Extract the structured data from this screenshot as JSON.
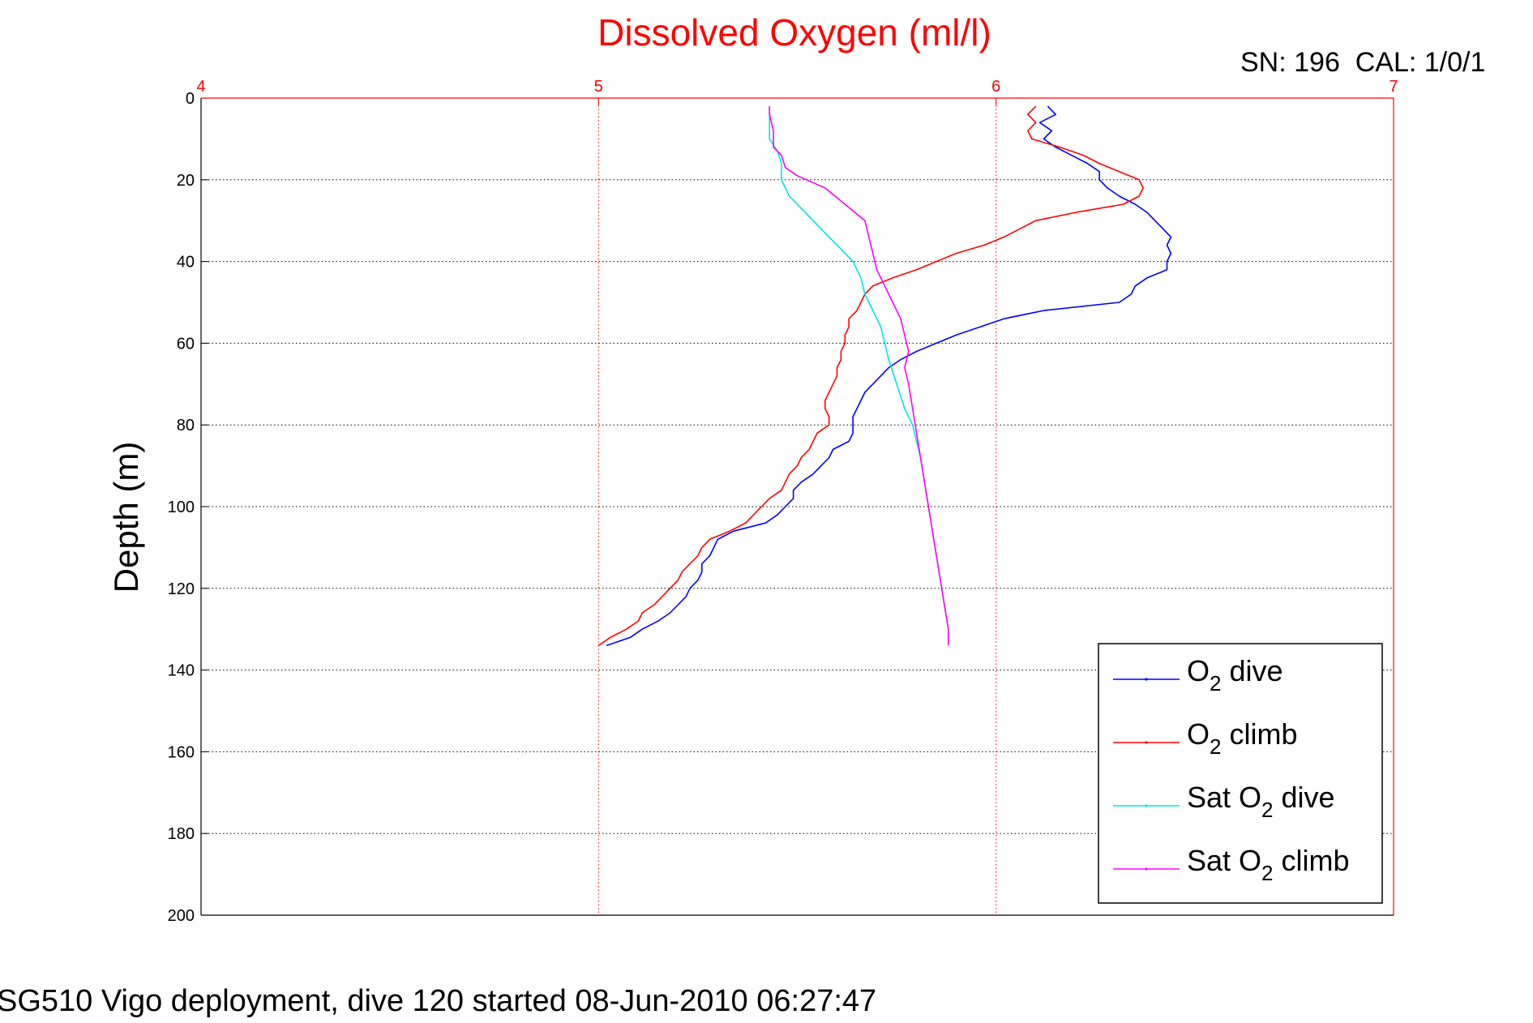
{
  "chart_data": {
    "type": "line",
    "title": "Dissolved Oxygen (ml/l)",
    "calibration_label": "SN: 196  CAL: 1/0/1",
    "ylabel": "Depth (m)",
    "xlabel": "",
    "x_axis_position": "top",
    "y_axis_reversed": true,
    "xlim": [
      4,
      7
    ],
    "ylim": [
      0,
      200
    ],
    "x_ticks": [
      "4",
      "5",
      "6",
      "7"
    ],
    "y_ticks": [
      "0",
      "20",
      "40",
      "60",
      "80",
      "100",
      "120",
      "140",
      "160",
      "180",
      "200"
    ],
    "grid": true,
    "legend_position": "bottom-right",
    "axis_color": "#ff0000",
    "series": [
      {
        "name": "O2 dive",
        "legend_main": "O",
        "legend_sub": "2",
        "legend_rest": " dive",
        "color": "#0000ff",
        "points": [
          [
            6.13,
            2
          ],
          [
            6.15,
            4
          ],
          [
            6.11,
            6
          ],
          [
            6.14,
            8
          ],
          [
            6.12,
            10
          ],
          [
            6.15,
            12
          ],
          [
            6.19,
            14
          ],
          [
            6.23,
            16
          ],
          [
            6.26,
            18
          ],
          [
            6.26,
            20
          ],
          [
            6.28,
            22
          ],
          [
            6.31,
            24
          ],
          [
            6.35,
            26
          ],
          [
            6.38,
            28
          ],
          [
            6.4,
            30
          ],
          [
            6.42,
            32
          ],
          [
            6.44,
            34
          ],
          [
            6.43,
            36
          ],
          [
            6.44,
            38
          ],
          [
            6.43,
            40
          ],
          [
            6.43,
            42
          ],
          [
            6.38,
            44
          ],
          [
            6.35,
            46
          ],
          [
            6.34,
            48
          ],
          [
            6.31,
            50
          ],
          [
            6.12,
            52
          ],
          [
            6.02,
            54
          ],
          [
            5.96,
            56
          ],
          [
            5.9,
            58
          ],
          [
            5.85,
            60
          ],
          [
            5.8,
            62
          ],
          [
            5.76,
            64
          ],
          [
            5.73,
            66
          ],
          [
            5.71,
            68
          ],
          [
            5.69,
            70
          ],
          [
            5.67,
            72
          ],
          [
            5.66,
            74
          ],
          [
            5.65,
            76
          ],
          [
            5.64,
            78
          ],
          [
            5.64,
            80
          ],
          [
            5.64,
            82
          ],
          [
            5.63,
            84
          ],
          [
            5.59,
            86
          ],
          [
            5.58,
            88
          ],
          [
            5.56,
            90
          ],
          [
            5.54,
            92
          ],
          [
            5.51,
            94
          ],
          [
            5.49,
            96
          ],
          [
            5.49,
            98
          ],
          [
            5.47,
            100
          ],
          [
            5.45,
            102
          ],
          [
            5.42,
            104
          ],
          [
            5.34,
            106
          ],
          [
            5.3,
            108
          ],
          [
            5.29,
            110
          ],
          [
            5.28,
            112
          ],
          [
            5.26,
            114
          ],
          [
            5.26,
            116
          ],
          [
            5.25,
            118
          ],
          [
            5.23,
            120
          ],
          [
            5.22,
            122
          ],
          [
            5.2,
            124
          ],
          [
            5.18,
            126
          ],
          [
            5.15,
            128
          ],
          [
            5.11,
            130
          ],
          [
            5.08,
            132
          ],
          [
            5.02,
            134
          ]
        ]
      },
      {
        "name": "O2 climb",
        "legend_main": "O",
        "legend_sub": "2",
        "legend_rest": " climb",
        "color": "#ff0000",
        "points": [
          [
            5.0,
            134
          ],
          [
            5.03,
            132
          ],
          [
            5.07,
            130
          ],
          [
            5.1,
            128
          ],
          [
            5.11,
            126
          ],
          [
            5.14,
            124
          ],
          [
            5.16,
            122
          ],
          [
            5.18,
            120
          ],
          [
            5.2,
            118
          ],
          [
            5.21,
            116
          ],
          [
            5.23,
            114
          ],
          [
            5.25,
            112
          ],
          [
            5.26,
            110
          ],
          [
            5.28,
            108
          ],
          [
            5.33,
            106
          ],
          [
            5.37,
            104
          ],
          [
            5.39,
            102
          ],
          [
            5.41,
            100
          ],
          [
            5.43,
            98
          ],
          [
            5.46,
            96
          ],
          [
            5.47,
            94
          ],
          [
            5.48,
            92
          ],
          [
            5.5,
            90
          ],
          [
            5.51,
            88
          ],
          [
            5.53,
            86
          ],
          [
            5.54,
            84
          ],
          [
            5.55,
            82
          ],
          [
            5.58,
            80
          ],
          [
            5.58,
            78
          ],
          [
            5.57,
            76
          ],
          [
            5.57,
            74
          ],
          [
            5.58,
            72
          ],
          [
            5.59,
            70
          ],
          [
            5.6,
            68
          ],
          [
            5.6,
            66
          ],
          [
            5.61,
            64
          ],
          [
            5.61,
            62
          ],
          [
            5.62,
            60
          ],
          [
            5.62,
            58
          ],
          [
            5.63,
            56
          ],
          [
            5.63,
            54
          ],
          [
            5.65,
            52
          ],
          [
            5.66,
            50
          ],
          [
            5.67,
            48
          ],
          [
            5.69,
            46
          ],
          [
            5.74,
            44
          ],
          [
            5.8,
            42
          ],
          [
            5.85,
            40
          ],
          [
            5.9,
            38
          ],
          [
            5.97,
            36
          ],
          [
            6.02,
            34
          ],
          [
            6.06,
            32
          ],
          [
            6.1,
            30
          ],
          [
            6.2,
            28
          ],
          [
            6.32,
            26
          ],
          [
            6.36,
            24
          ],
          [
            6.37,
            22
          ],
          [
            6.36,
            20
          ],
          [
            6.31,
            18
          ],
          [
            6.26,
            16
          ],
          [
            6.22,
            14
          ],
          [
            6.16,
            12
          ],
          [
            6.09,
            10
          ],
          [
            6.08,
            8
          ],
          [
            6.1,
            6
          ],
          [
            6.08,
            4
          ],
          [
            6.1,
            2
          ]
        ]
      },
      {
        "name": "Sat O2 dive",
        "legend_main": "Sat O",
        "legend_sub": "2",
        "legend_rest": " dive",
        "color": "#00e5e5",
        "points": [
          [
            5.43,
            2
          ],
          [
            5.43,
            6
          ],
          [
            5.43,
            10
          ],
          [
            5.45,
            13
          ],
          [
            5.46,
            16
          ],
          [
            5.46,
            20
          ],
          [
            5.48,
            24
          ],
          [
            5.52,
            28
          ],
          [
            5.56,
            32
          ],
          [
            5.6,
            36
          ],
          [
            5.64,
            40
          ],
          [
            5.66,
            44
          ],
          [
            5.67,
            48
          ],
          [
            5.69,
            52
          ],
          [
            5.71,
            56
          ],
          [
            5.72,
            60
          ],
          [
            5.73,
            64
          ],
          [
            5.75,
            70
          ],
          [
            5.77,
            76
          ],
          [
            5.79,
            80
          ],
          [
            5.8,
            84
          ],
          [
            5.81,
            88
          ],
          [
            5.82,
            94
          ],
          [
            5.83,
            100
          ],
          [
            5.84,
            106
          ],
          [
            5.85,
            112
          ],
          [
            5.86,
            118
          ],
          [
            5.87,
            124
          ],
          [
            5.88,
            130
          ],
          [
            5.88,
            134
          ]
        ]
      },
      {
        "name": "Sat O2 climb",
        "legend_main": "Sat O",
        "legend_sub": "2",
        "legend_rest": " climb",
        "color": "#ff00ff",
        "points": [
          [
            5.88,
            134
          ],
          [
            5.88,
            130
          ],
          [
            5.87,
            124
          ],
          [
            5.86,
            118
          ],
          [
            5.85,
            112
          ],
          [
            5.84,
            106
          ],
          [
            5.83,
            100
          ],
          [
            5.82,
            94
          ],
          [
            5.81,
            88
          ],
          [
            5.8,
            82
          ],
          [
            5.79,
            76
          ],
          [
            5.78,
            70
          ],
          [
            5.77,
            66
          ],
          [
            5.78,
            62
          ],
          [
            5.77,
            58
          ],
          [
            5.76,
            54
          ],
          [
            5.74,
            50
          ],
          [
            5.72,
            46
          ],
          [
            5.7,
            42
          ],
          [
            5.69,
            38
          ],
          [
            5.68,
            34
          ],
          [
            5.67,
            30
          ],
          [
            5.62,
            26
          ],
          [
            5.57,
            22
          ],
          [
            5.5,
            19
          ],
          [
            5.47,
            17
          ],
          [
            5.46,
            14
          ],
          [
            5.44,
            12
          ],
          [
            5.44,
            8
          ],
          [
            5.43,
            4
          ],
          [
            5.43,
            2
          ]
        ]
      }
    ]
  },
  "footer": {
    "caption": "SG510 Vigo deployment, dive 120 started 08-Jun-2010 06:27:47"
  }
}
